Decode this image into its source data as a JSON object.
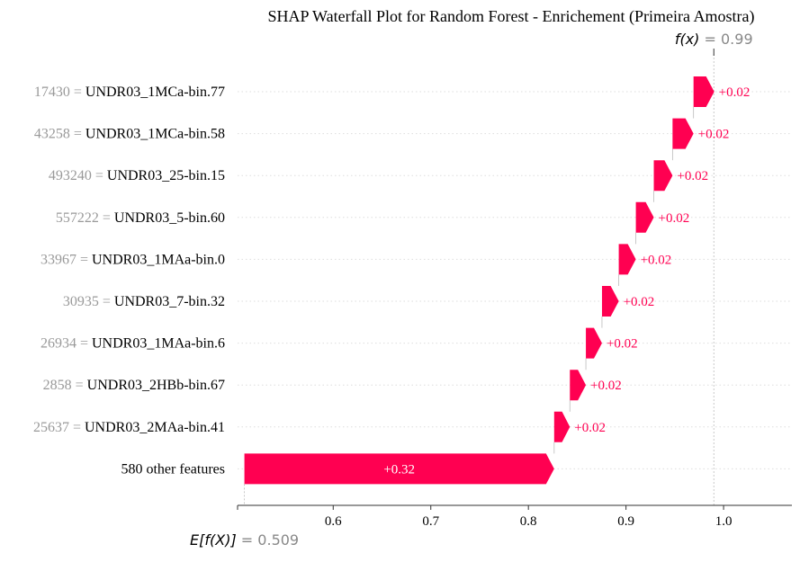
{
  "chart_data": {
    "type": "waterfall",
    "title": "SHAP Waterfall Plot for Random Forest - Enrichement (Primeira Amostra)",
    "base_value": 0.509,
    "base_label_italic": "E[f(X)]",
    "base_value_text": " = 0.509",
    "final_value": 0.99,
    "final_label_italic": "f(x)",
    "final_value_text": " = 0.99",
    "xlim": [
      0.502,
      1.07
    ],
    "xticks": [
      0.5,
      0.6,
      0.7,
      0.8,
      0.9,
      1.0
    ],
    "xtick_labels": [
      "",
      "0.6",
      "0.7",
      "0.8",
      "0.9",
      "1.0"
    ],
    "grid": "dotted horizontal row lines",
    "features": [
      {
        "value": "17430",
        "name": "UNDR03_1MCa-bin.77",
        "start": 0.9692,
        "shap": 0.0212,
        "label": "+0.02"
      },
      {
        "value": "43258",
        "name": "UNDR03_1MCa-bin.58",
        "start": 0.9477,
        "shap": 0.0215,
        "label": "+0.02"
      },
      {
        "value": "493240",
        "name": "UNDR03_25-bin.15",
        "start": 0.9285,
        "shap": 0.0192,
        "label": "+0.02"
      },
      {
        "value": "557222",
        "name": "UNDR03_5-bin.60",
        "start": 0.9101,
        "shap": 0.0184,
        "label": "+0.02"
      },
      {
        "value": "33967",
        "name": "UNDR03_1MAa-bin.0",
        "start": 0.8926,
        "shap": 0.0175,
        "label": "+0.02"
      },
      {
        "value": "30935",
        "name": "UNDR03_7-bin.32",
        "start": 0.8754,
        "shap": 0.0172,
        "label": "+0.02"
      },
      {
        "value": "26934",
        "name": "UNDR03_1MAa-bin.6",
        "start": 0.8589,
        "shap": 0.0165,
        "label": "+0.02"
      },
      {
        "value": "2858",
        "name": "UNDR03_2HBb-bin.67",
        "start": 0.8425,
        "shap": 0.0164,
        "label": "+0.02"
      },
      {
        "value": "25637",
        "name": "UNDR03_2MAa-bin.41",
        "start": 0.8264,
        "shap": 0.0161,
        "label": "+0.02"
      },
      {
        "value": "",
        "name": "580 other features",
        "start": 0.509,
        "shap": 0.3174,
        "label": "+0.32"
      }
    ],
    "colors": {
      "positive": "#ff0051",
      "feature_value": "#999999",
      "feature_name": "#000000",
      "axis": "#333333",
      "gridline": "#dddddd",
      "expected_text": "#888888"
    }
  }
}
